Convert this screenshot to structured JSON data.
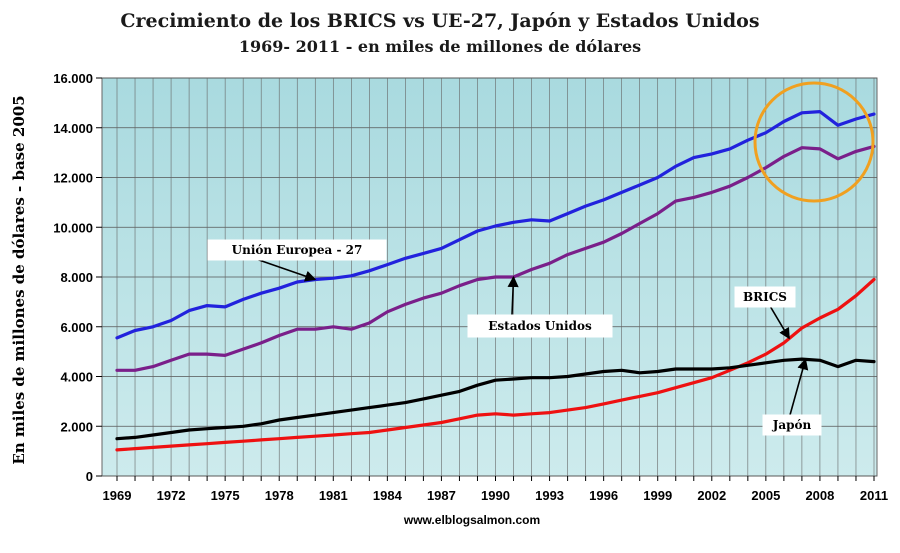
{
  "chart_data": {
    "type": "line",
    "title": "Crecimiento de los BRICS vs UE-27, Japón y Estados Unidos",
    "subtitle": "1969- 2011 - en miles de millones de dólares",
    "ylabel": "En miles de millones de dólares - base 2005",
    "source": "www.elblogsalmon.com",
    "xlim": [
      1969,
      2011
    ],
    "ylim": [
      0,
      16000
    ],
    "x_ticks": [
      1969,
      1972,
      1975,
      1978,
      1981,
      1984,
      1987,
      1990,
      1993,
      1996,
      1999,
      2002,
      2005,
      2008,
      2011
    ],
    "y_ticks": [
      "0",
      "2.000",
      "4.000",
      "6.000",
      "8.000",
      "10.000",
      "12.000",
      "14.000",
      "16.000"
    ],
    "grid": true,
    "x": [
      1969,
      1970,
      1971,
      1972,
      1973,
      1974,
      1975,
      1976,
      1977,
      1978,
      1979,
      1980,
      1981,
      1982,
      1983,
      1984,
      1985,
      1986,
      1987,
      1988,
      1989,
      1990,
      1991,
      1992,
      1993,
      1994,
      1995,
      1996,
      1997,
      1998,
      1999,
      2000,
      2001,
      2002,
      2003,
      2004,
      2005,
      2006,
      2007,
      2008,
      2009,
      2010,
      2011
    ],
    "series": [
      {
        "key": "ue27",
        "color": "#2222dd",
        "values": [
          5550,
          5850,
          6000,
          6250,
          6650,
          6850,
          6800,
          7100,
          7350,
          7550,
          7800,
          7900,
          7950,
          8050,
          8250,
          8500,
          8750,
          8950,
          9150,
          9500,
          9850,
          10050,
          10200,
          10300,
          10250,
          10550,
          10850,
          11100,
          11400,
          11700,
          12000,
          12450,
          12800,
          12950,
          13150,
          13500,
          13800,
          14250,
          14600,
          14650,
          14100,
          14350,
          14550
        ]
      },
      {
        "key": "usa",
        "color": "#7a1f8a",
        "values": [
          4250,
          4250,
          4400,
          4650,
          4900,
          4900,
          4850,
          5100,
          5350,
          5650,
          5900,
          5900,
          6000,
          5900,
          6150,
          6600,
          6900,
          7150,
          7350,
          7650,
          7900,
          8000,
          8000,
          8300,
          8550,
          8900,
          9150,
          9400,
          9750,
          10150,
          10550,
          11050,
          11200,
          11400,
          11650,
          12000,
          12400,
          12850,
          13200,
          13150,
          12750,
          13050,
          13250
        ]
      },
      {
        "key": "brics",
        "color": "#ee1111",
        "values": [
          1050,
          1100,
          1150,
          1200,
          1250,
          1300,
          1350,
          1400,
          1450,
          1500,
          1550,
          1600,
          1650,
          1700,
          1750,
          1850,
          1950,
          2050,
          2150,
          2300,
          2450,
          2500,
          2450,
          2500,
          2550,
          2650,
          2750,
          2900,
          3050,
          3200,
          3350,
          3550,
          3750,
          3950,
          4250,
          4550,
          4900,
          5350,
          5950,
          6350,
          6700,
          7250,
          7900
        ]
      },
      {
        "key": "japon",
        "color": "#000000",
        "values": [
          1500,
          1550,
          1650,
          1750,
          1850,
          1900,
          1950,
          2000,
          2100,
          2250,
          2350,
          2450,
          2550,
          2650,
          2750,
          2850,
          2950,
          3100,
          3250,
          3400,
          3650,
          3850,
          3900,
          3950,
          3950,
          4000,
          4100,
          4200,
          4250,
          4150,
          4200,
          4300,
          4300,
          4300,
          4350,
          4450,
          4550,
          4650,
          4700,
          4650,
          4400,
          4650,
          4600
        ]
      }
    ],
    "annotations": [
      {
        "key": "ue27",
        "label": "Unión Europea - 27"
      },
      {
        "key": "usa",
        "label": "Estados Unidos"
      },
      {
        "key": "brics",
        "label": "BRICS"
      },
      {
        "key": "japon",
        "label": "Japón"
      }
    ],
    "highlight_circle_color": "#f0a020",
    "plot_background": "#b5e0e4"
  }
}
